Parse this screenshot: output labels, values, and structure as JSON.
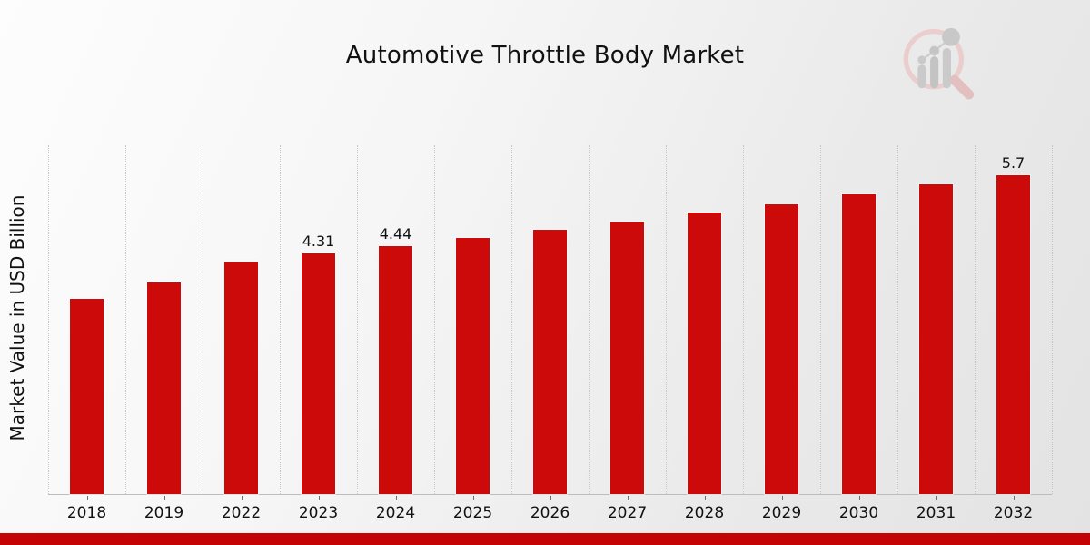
{
  "title": "Automotive Throttle Body Market",
  "ylabel": "Market Value in USD Billion",
  "colors": {
    "bar": "#cc0a0a",
    "banner": "#c40404",
    "grid": "#c7c7c7",
    "axis": "#bdbdbd",
    "text": "#111111",
    "background_start": "#fdfdfd",
    "background_end": "#e3e3e3",
    "logo_ring": "#ecc9c9",
    "logo_handle": "#e3b8b8",
    "logo_bars": "#c5c5c5"
  },
  "logo": {
    "name": "market-research-future-watermark"
  },
  "chart_data": {
    "type": "bar",
    "title": "Automotive Throttle Body Market",
    "xlabel": "",
    "ylabel": "Market Value in USD Billion",
    "categories": [
      "2018",
      "2019",
      "2022",
      "2023",
      "2024",
      "2025",
      "2026",
      "2027",
      "2028",
      "2029",
      "2030",
      "2031",
      "2032"
    ],
    "values": [
      3.5,
      3.79,
      4.16,
      4.31,
      4.44,
      4.59,
      4.73,
      4.88,
      5.04,
      5.19,
      5.37,
      5.54,
      5.7
    ],
    "bar_labels": [
      "",
      "",
      "",
      "4.31",
      "4.44",
      "",
      "",
      "",
      "",
      "",
      "",
      "",
      "5.7"
    ],
    "ylim": [
      0,
      6.26
    ],
    "grid": "vertical-dotted",
    "legend": "none",
    "bar_color": "#cc0a0a"
  }
}
